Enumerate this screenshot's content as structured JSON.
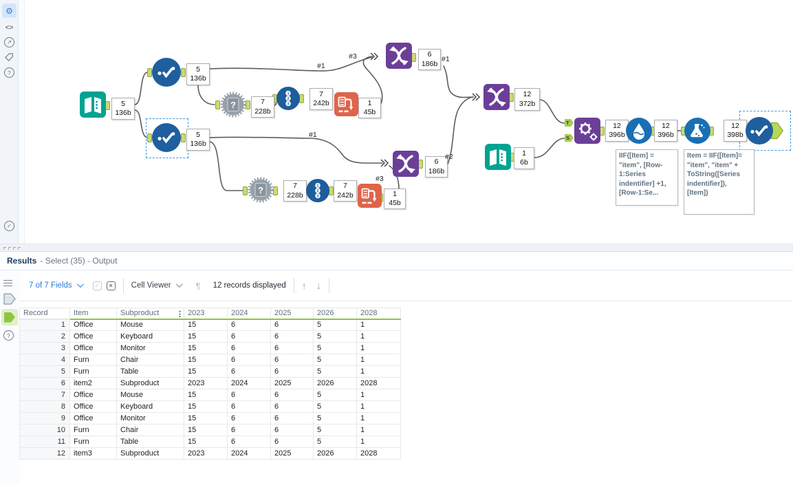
{
  "colors": {
    "select_blue": "#1f5f9f",
    "formula_blue": "#1a6fb4",
    "union_purple": "#6b3f98",
    "input_teal": "#00a392",
    "crosstab_orange": "#df644a",
    "rename_gray": "#97a1a9",
    "anchor_green": "#cadb72",
    "selection_blue": "#3b97e3",
    "header_green": "#8dc63f",
    "link_blue": "#2a7cd4"
  },
  "icons": {
    "gear": "⚙",
    "code": "<>",
    "open": "↗",
    "help": "?",
    "check": "✓",
    "pilcrow": "¶",
    "up": "↑",
    "down": "↓",
    "dots": "⋮"
  },
  "canvas": {
    "nodes": {
      "input1": {
        "records": "5",
        "size": "136b"
      },
      "select1": {
        "records": "5",
        "size": "136b"
      },
      "select2": {
        "records": "5",
        "size": "136b"
      },
      "rename1": {
        "records": "7",
        "size": "228b"
      },
      "recordid1": {
        "records": "7",
        "size": "242b"
      },
      "crosstab1": {
        "records": "1",
        "size": "45b"
      },
      "union1": {
        "records": "6",
        "size": "186b"
      },
      "rename2": {
        "records": "7",
        "size": "228b"
      },
      "recordid2": {
        "records": "7",
        "size": "242b"
      },
      "crosstab2": {
        "records": "1",
        "size": "45b"
      },
      "union2": {
        "records": "6",
        "size": "186b"
      },
      "union3": {
        "records": "12",
        "size": "372b"
      },
      "input2": {
        "records": "1",
        "size": "6b"
      },
      "append": {
        "records": "12",
        "size": "396b"
      },
      "multirow": {
        "records": "12",
        "size": "396b"
      },
      "formula": {
        "records": "12",
        "size": "398b"
      }
    },
    "labels": {
      "top1": "#1",
      "top3": "#3",
      "u1out": "#1",
      "bot1": "#1",
      "bot3": "#3",
      "u2out": "#2"
    },
    "append_anchors": {
      "target": "T",
      "source": "S"
    },
    "annotations": {
      "multirow": "IIF([Item] =\n\"item\", [Row-\n1:Series\nindentifier] +1,\n[Row-1:Se...",
      "formula": "Item = IIF([Item]=\n\"item\", \"item\" +\nToString([Series\nindentifier]),\n[Item])"
    }
  },
  "results": {
    "title": "Results",
    "subtitle": "- Select (35) - Output",
    "toolbar": {
      "fields": "7 of 7 Fields",
      "cell_viewer": "Cell Viewer",
      "records": "12 records displayed"
    },
    "table": {
      "columns": [
        "Record",
        "Item",
        "Subproduct",
        "2023",
        "2024",
        "2025",
        "2026",
        "2028"
      ],
      "rows": [
        [
          "1",
          "Office",
          "Mouse",
          "15",
          "6",
          "6",
          "5",
          "1"
        ],
        [
          "2",
          "Office",
          "Keyboard",
          "15",
          "6",
          "6",
          "5",
          "1"
        ],
        [
          "3",
          "Office",
          "Monitor",
          "15",
          "6",
          "6",
          "5",
          "1"
        ],
        [
          "4",
          "Furn",
          "Chair",
          "15",
          "6",
          "6",
          "5",
          "1"
        ],
        [
          "5",
          "Furn",
          "Table",
          "15",
          "6",
          "6",
          "5",
          "1"
        ],
        [
          "6",
          "item2",
          "Subproduct",
          "2023",
          "2024",
          "2025",
          "2026",
          "2028"
        ],
        [
          "7",
          "Office",
          "Mouse",
          "15",
          "6",
          "6",
          "5",
          "1"
        ],
        [
          "8",
          "Office",
          "Keyboard",
          "15",
          "6",
          "6",
          "5",
          "1"
        ],
        [
          "9",
          "Office",
          "Monitor",
          "15",
          "6",
          "6",
          "5",
          "1"
        ],
        [
          "10",
          "Furn",
          "Chair",
          "15",
          "6",
          "6",
          "5",
          "1"
        ],
        [
          "11",
          "Furn",
          "Table",
          "15",
          "6",
          "6",
          "5",
          "1"
        ],
        [
          "12",
          "item3",
          "Subproduct",
          "2023",
          "2024",
          "2025",
          "2026",
          "2028"
        ]
      ]
    }
  }
}
